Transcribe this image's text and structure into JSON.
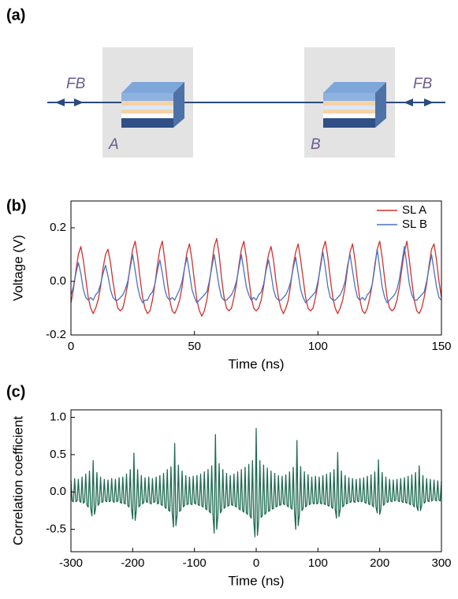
{
  "diagram": {
    "label": "(a)",
    "feedback_left": "FB",
    "feedback_right": "FB",
    "laser_a": "A",
    "laser_b": "B"
  },
  "chart_data": [
    {
      "type": "line",
      "panel_label": "(b)",
      "xlabel": "Time (ns)",
      "ylabel": "Voltage (V)",
      "xlim": [
        0,
        150
      ],
      "ylim": [
        -0.2,
        0.3
      ],
      "xticks": [
        0,
        50,
        100,
        150
      ],
      "yticks": [
        -0.2,
        {
          "value": 0,
          "label": "0.0"
        },
        0.2
      ],
      "legend": "upper right",
      "x": [
        0,
        1,
        2,
        3,
        4,
        5,
        6,
        7,
        8,
        9,
        10,
        11,
        12,
        13,
        14,
        15,
        16,
        17,
        18,
        19,
        20,
        21,
        22,
        23,
        24,
        25,
        26,
        27,
        28,
        29,
        30,
        31,
        32,
        33,
        34,
        35,
        36,
        37,
        38,
        39,
        40,
        41,
        42,
        43,
        44,
        45,
        46,
        47,
        48,
        49,
        50,
        51,
        52,
        53,
        54,
        55,
        56,
        57,
        58,
        59,
        60,
        61,
        62,
        63,
        64,
        65,
        66,
        67,
        68,
        69,
        70,
        71,
        72,
        73,
        74,
        75,
        76,
        77,
        78,
        79,
        80,
        81,
        82,
        83,
        84,
        85,
        86,
        87,
        88,
        89,
        90,
        91,
        92,
        93,
        94,
        95,
        96,
        97,
        98,
        99,
        100,
        101,
        102,
        103,
        104,
        105,
        106,
        107,
        108,
        109,
        110,
        111,
        112,
        113,
        114,
        115,
        116,
        117,
        118,
        119,
        120,
        121,
        122,
        123,
        124,
        125,
        126,
        127,
        128,
        129,
        130,
        131,
        132,
        133,
        134,
        135,
        136,
        137,
        138,
        139,
        140,
        141,
        142,
        143,
        144,
        145,
        146,
        147,
        148,
        149,
        150
      ],
      "series": [
        {
          "name": "SL A",
          "color": "#d0312d",
          "values": [
            -0.08,
            -0.03,
            0.04,
            0.1,
            0.13,
            0.08,
            0.01,
            -0.06,
            -0.1,
            -0.12,
            -0.1,
            -0.07,
            -0.02,
            0.05,
            0.1,
            0.12,
            0.07,
            0.0,
            -0.06,
            -0.1,
            -0.11,
            -0.1,
            -0.06,
            -0.01,
            0.06,
            0.12,
            0.15,
            0.09,
            0.01,
            -0.06,
            -0.1,
            -0.12,
            -0.11,
            -0.07,
            -0.01,
            0.06,
            0.12,
            0.15,
            0.08,
            0.0,
            -0.07,
            -0.11,
            -0.12,
            -0.1,
            -0.07,
            -0.02,
            0.05,
            0.11,
            0.14,
            0.08,
            0.0,
            -0.07,
            -0.11,
            -0.13,
            -0.11,
            -0.07,
            -0.01,
            0.06,
            0.13,
            0.16,
            0.1,
            0.01,
            -0.06,
            -0.1,
            -0.11,
            -0.1,
            -0.06,
            -0.01,
            0.06,
            0.12,
            0.15,
            0.09,
            0.01,
            -0.06,
            -0.1,
            -0.11,
            -0.1,
            -0.07,
            -0.02,
            0.05,
            0.1,
            0.13,
            0.08,
            0.0,
            -0.06,
            -0.1,
            -0.12,
            -0.1,
            -0.07,
            -0.01,
            0.06,
            0.11,
            0.14,
            0.08,
            0.01,
            -0.06,
            -0.1,
            -0.11,
            -0.1,
            -0.06,
            -0.01,
            0.06,
            0.12,
            0.15,
            0.09,
            0.01,
            -0.06,
            -0.1,
            -0.12,
            -0.1,
            -0.07,
            -0.02,
            0.05,
            0.11,
            0.14,
            0.08,
            0.0,
            -0.07,
            -0.11,
            -0.12,
            -0.1,
            -0.06,
            -0.01,
            0.06,
            0.12,
            0.15,
            0.09,
            0.01,
            -0.06,
            -0.1,
            -0.11,
            -0.1,
            -0.07,
            -0.02,
            0.05,
            0.11,
            0.15,
            0.08,
            0.0,
            -0.07,
            -0.11,
            -0.12,
            -0.1,
            -0.06,
            -0.01,
            0.06,
            0.12,
            0.14,
            0.08,
            0.0,
            -0.06
          ]
        },
        {
          "name": "SL B",
          "color": "#4a72c0",
          "values": [
            -0.05,
            -0.02,
            0.03,
            0.07,
            0.03,
            -0.03,
            -0.06,
            -0.07,
            -0.06,
            -0.07,
            -0.05,
            -0.04,
            -0.01,
            0.03,
            0.06,
            0.02,
            -0.03,
            -0.06,
            -0.07,
            -0.07,
            -0.06,
            -0.05,
            -0.03,
            0.0,
            0.05,
            0.1,
            0.04,
            -0.02,
            -0.06,
            -0.08,
            -0.07,
            -0.07,
            -0.05,
            -0.04,
            -0.01,
            0.04,
            0.08,
            0.03,
            -0.03,
            -0.06,
            -0.07,
            -0.06,
            -0.07,
            -0.05,
            -0.03,
            0.0,
            0.05,
            0.09,
            0.03,
            -0.03,
            -0.06,
            -0.08,
            -0.07,
            -0.06,
            -0.05,
            -0.04,
            0.0,
            0.05,
            0.1,
            0.04,
            -0.02,
            -0.06,
            -0.07,
            -0.07,
            -0.06,
            -0.05,
            -0.03,
            0.0,
            0.05,
            0.1,
            0.04,
            -0.02,
            -0.05,
            -0.07,
            -0.06,
            -0.07,
            -0.05,
            -0.04,
            -0.01,
            0.04,
            0.08,
            0.03,
            -0.03,
            -0.06,
            -0.07,
            -0.07,
            -0.06,
            -0.05,
            -0.03,
            0.0,
            0.05,
            0.09,
            0.03,
            -0.03,
            -0.06,
            -0.08,
            -0.07,
            -0.06,
            -0.05,
            -0.04,
            0.0,
            0.05,
            0.11,
            0.05,
            -0.02,
            -0.06,
            -0.07,
            -0.07,
            -0.06,
            -0.05,
            -0.03,
            0.0,
            0.06,
            0.1,
            0.04,
            -0.02,
            -0.06,
            -0.07,
            -0.06,
            -0.07,
            -0.05,
            -0.04,
            -0.01,
            0.05,
            0.12,
            0.05,
            -0.02,
            -0.06,
            -0.08,
            -0.07,
            -0.06,
            -0.05,
            -0.03,
            0.01,
            0.07,
            0.13,
            0.06,
            -0.01,
            -0.05,
            -0.07,
            -0.07,
            -0.06,
            -0.05,
            -0.04,
            0.0,
            0.05,
            0.1,
            0.04,
            -0.02,
            -0.06,
            -0.07
          ]
        }
      ]
    },
    {
      "type": "line",
      "panel_label": "(c)",
      "xlabel": "Time (ns)",
      "ylabel": "Correlation coefficient",
      "xlim": [
        -300,
        300
      ],
      "ylim": [
        -0.8,
        1.1
      ],
      "xticks": [
        -300,
        -200,
        -100,
        {
          "value": 0,
          "label": "0"
        },
        100,
        200,
        300
      ],
      "yticks": [
        -0.5,
        {
          "value": 0,
          "label": "0.0"
        },
        0.5,
        {
          "value": 1,
          "label": "1.0"
        }
      ],
      "x": [
        -300,
        -298,
        -296,
        -294,
        -292,
        -290,
        -288,
        -286,
        -284,
        -282,
        -280,
        -278,
        -276,
        -274,
        -272,
        -270,
        -268,
        -266,
        -264,
        -262,
        -260,
        -258,
        -256,
        -254,
        -252,
        -250,
        -248,
        -246,
        -244,
        -242,
        -240,
        -238,
        -236,
        -234,
        -232,
        -230,
        -228,
        -226,
        -224,
        -222,
        -220,
        -218,
        -216,
        -214,
        -212,
        -210,
        -208,
        -206,
        -204,
        -202,
        -200,
        -198,
        -196,
        -194,
        -192,
        -190,
        -188,
        -186,
        -184,
        -182,
        -180,
        -178,
        -176,
        -174,
        -172,
        -170,
        -168,
        -166,
        -164,
        -162,
        -160,
        -158,
        -156,
        -154,
        -152,
        -150,
        -148,
        -146,
        -144,
        -142,
        -140,
        -138,
        -136,
        -134,
        -132,
        -130,
        -128,
        -126,
        -124,
        -122,
        -120,
        -118,
        -116,
        -114,
        -112,
        -110,
        -108,
        -106,
        -104,
        -102,
        -100,
        -98,
        -96,
        -94,
        -92,
        -90,
        -88,
        -86,
        -84,
        -82,
        -80,
        -78,
        -76,
        -74,
        -72,
        -70,
        -68,
        -66,
        -64,
        -62,
        -60,
        -58,
        -56,
        -54,
        -52,
        -50,
        -48,
        -46,
        -44,
        -42,
        -40,
        -38,
        -36,
        -34,
        -32,
        -30,
        -28,
        -26,
        -24,
        -22,
        -20,
        -18,
        -16,
        -14,
        -12,
        -10,
        -8,
        -6,
        -4,
        -2,
        0,
        2,
        4,
        6,
        8,
        10,
        12,
        14,
        16,
        18,
        20,
        22,
        24,
        26,
        28,
        30,
        32,
        34,
        36,
        38,
        40,
        42,
        44,
        46,
        48,
        50,
        52,
        54,
        56,
        58,
        60,
        62,
        64,
        66,
        68,
        70,
        72,
        74,
        76,
        78,
        80,
        82,
        84,
        86,
        88,
        90,
        92,
        94,
        96,
        98,
        100,
        102,
        104,
        106,
        108,
        110,
        112,
        114,
        116,
        118,
        120,
        122,
        124,
        126,
        128,
        130,
        132,
        134,
        136,
        138,
        140,
        142,
        144,
        146,
        148,
        150,
        152,
        154,
        156,
        158,
        160,
        162,
        164,
        166,
        168,
        170,
        172,
        174,
        176,
        178,
        180,
        182,
        184,
        186,
        188,
        190,
        192,
        194,
        196,
        198,
        200,
        202,
        204,
        206,
        208,
        210,
        212,
        214,
        216,
        218,
        220,
        222,
        224,
        226,
        228,
        230,
        232,
        234,
        236,
        238,
        240,
        242,
        244,
        246,
        248,
        250,
        252,
        254,
        256,
        258,
        260,
        262,
        264,
        266,
        268,
        270,
        272,
        274,
        276,
        278,
        280,
        282,
        284,
        286,
        288,
        290,
        292,
        294,
        296,
        298,
        300
      ],
      "series": [
        {
          "name": null,
          "color": "#1f6b52",
          "values": [
            0.16,
            -0.12,
            -0.13,
            0.18,
            -0.13,
            -0.12,
            0.17,
            -0.12,
            -0.14,
            0.2,
            -0.15,
            -0.13,
            0.24,
            -0.18,
            -0.2,
            0.28,
            -0.22,
            -0.32,
            0.42,
            -0.3,
            -0.22,
            0.26,
            -0.18,
            -0.15,
            0.2,
            -0.14,
            -0.13,
            0.17,
            -0.12,
            -0.13,
            0.16,
            -0.13,
            -0.12,
            0.18,
            -0.12,
            -0.14,
            0.17,
            -0.13,
            -0.12,
            0.19,
            -0.14,
            -0.15,
            0.2,
            -0.15,
            -0.16,
            0.24,
            -0.18,
            -0.2,
            0.3,
            -0.22,
            -0.36,
            0.52,
            -0.38,
            -0.24,
            0.3,
            -0.2,
            -0.18,
            0.22,
            -0.16,
            -0.14,
            0.19,
            -0.13,
            -0.14,
            0.2,
            -0.15,
            -0.16,
            0.18,
            -0.14,
            -0.13,
            0.2,
            -0.16,
            -0.15,
            0.22,
            -0.17,
            -0.18,
            0.25,
            -0.2,
            -0.22,
            0.3,
            -0.24,
            -0.26,
            0.34,
            -0.28,
            -0.47,
            0.65,
            -0.45,
            -0.3,
            0.36,
            -0.26,
            -0.24,
            0.28,
            -0.2,
            -0.18,
            0.22,
            -0.17,
            -0.16,
            0.2,
            -0.16,
            -0.17,
            0.21,
            -0.15,
            -0.16,
            0.22,
            -0.17,
            -0.18,
            0.24,
            -0.19,
            -0.2,
            0.27,
            -0.22,
            -0.24,
            0.3,
            -0.26,
            -0.28,
            0.35,
            -0.3,
            -0.55,
            0.77,
            -0.5,
            -0.32,
            0.38,
            -0.28,
            -0.25,
            0.3,
            -0.22,
            -0.2,
            0.25,
            -0.19,
            -0.18,
            0.22,
            -0.17,
            -0.18,
            0.24,
            -0.19,
            -0.2,
            0.27,
            -0.22,
            -0.24,
            0.3,
            -0.25,
            -0.27,
            0.33,
            -0.28,
            -0.3,
            0.37,
            -0.32,
            -0.35,
            0.42,
            -0.38,
            -0.6,
            0.85,
            -0.58,
            -0.38,
            0.42,
            -0.34,
            -0.32,
            0.36,
            -0.3,
            -0.28,
            0.32,
            -0.26,
            -0.25,
            0.28,
            -0.23,
            -0.22,
            0.25,
            -0.2,
            -0.19,
            0.22,
            -0.18,
            -0.17,
            0.21,
            -0.16,
            -0.17,
            0.23,
            -0.18,
            -0.2,
            0.27,
            -0.21,
            -0.23,
            0.33,
            -0.26,
            -0.5,
            0.69,
            -0.45,
            -0.3,
            0.34,
            -0.25,
            -0.22,
            0.27,
            -0.2,
            -0.18,
            0.23,
            -0.17,
            -0.16,
            0.2,
            -0.15,
            -0.16,
            0.21,
            -0.16,
            -0.15,
            0.2,
            -0.15,
            -0.16,
            0.22,
            -0.16,
            -0.17,
            0.24,
            -0.18,
            -0.19,
            0.26,
            -0.2,
            -0.22,
            0.3,
            -0.23,
            -0.35,
            0.53,
            -0.33,
            -0.24,
            0.28,
            -0.2,
            -0.18,
            0.22,
            -0.16,
            -0.15,
            0.19,
            -0.14,
            -0.13,
            0.18,
            -0.13,
            -0.14,
            0.17,
            -0.12,
            -0.13,
            0.18,
            -0.13,
            -0.12,
            0.19,
            -0.14,
            -0.15,
            0.21,
            -0.16,
            -0.17,
            0.23,
            -0.18,
            -0.2,
            0.27,
            -0.2,
            -0.28,
            0.43,
            -0.3,
            -0.22,
            0.26,
            -0.18,
            -0.16,
            0.2,
            -0.14,
            -0.13,
            0.17,
            -0.12,
            -0.13,
            0.16,
            -0.12,
            -0.11,
            0.17,
            -0.12,
            -0.13,
            0.18,
            -0.13,
            -0.14,
            0.19,
            -0.14,
            -0.15,
            0.21,
            -0.16,
            -0.17,
            0.23,
            -0.17,
            -0.2,
            0.26,
            -0.19,
            -0.25,
            0.35,
            -0.25,
            -0.18,
            0.22,
            -0.15,
            -0.13,
            0.18,
            -0.12,
            -0.13,
            0.17,
            -0.12,
            -0.11,
            0.16,
            -0.11,
            -0.12,
            0.15,
            -0.11,
            -0.12,
            0.14
          ]
        }
      ]
    }
  ]
}
